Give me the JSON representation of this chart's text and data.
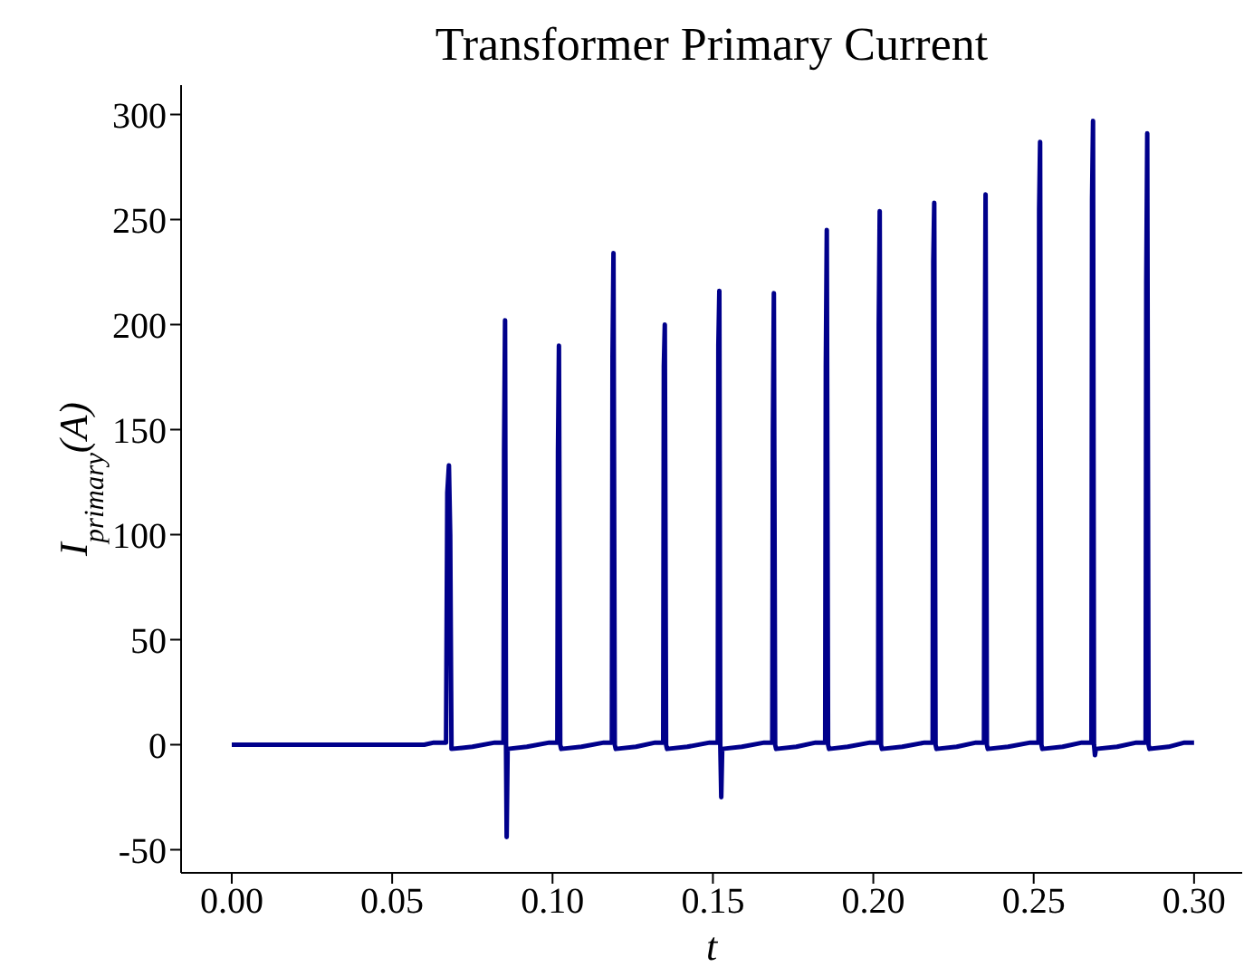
{
  "chart_data": {
    "type": "line",
    "title": "Transformer Primary Current",
    "xlabel": "t",
    "ylabel": "I$_{primary}$(A)",
    "series": [
      {
        "color": "#00008b",
        "x": [
          0,
          0.06,
          0.063,
          0.0668,
          0.0672,
          0.0677,
          0.0681,
          0.0685,
          0.075,
          0.082,
          0.0847,
          0.0849,
          0.0852,
          0.0855,
          0.0857,
          0.086,
          0.092,
          0.099,
          0.1015,
          0.1017,
          0.102,
          0.1024,
          0.1027,
          0.109,
          0.116,
          0.1185,
          0.1187,
          0.119,
          0.1194,
          0.1197,
          0.126,
          0.132,
          0.1345,
          0.1347,
          0.135,
          0.1354,
          0.1357,
          0.142,
          0.149,
          0.1515,
          0.1517,
          0.152,
          0.1523,
          0.1526,
          0.1529,
          0.159,
          0.166,
          0.1685,
          0.1687,
          0.169,
          0.1694,
          0.1697,
          0.176,
          0.182,
          0.185,
          0.1852,
          0.1855,
          0.1859,
          0.1862,
          0.192,
          0.199,
          0.2015,
          0.2017,
          0.202,
          0.2024,
          0.2027,
          0.209,
          0.216,
          0.2185,
          0.2187,
          0.219,
          0.2194,
          0.2197,
          0.226,
          0.232,
          0.2345,
          0.2347,
          0.235,
          0.2354,
          0.2357,
          0.242,
          0.249,
          0.2515,
          0.2517,
          0.252,
          0.2524,
          0.2527,
          0.259,
          0.265,
          0.268,
          0.2682,
          0.2685,
          0.2688,
          0.2691,
          0.2694,
          0.276,
          0.282,
          0.2849,
          0.2851,
          0.2854,
          0.2858,
          0.2861,
          0.292,
          0.297,
          0.3
        ],
        "values": [
          0,
          0,
          1,
          1,
          120,
          133,
          100,
          -2,
          -1,
          1,
          1,
          140,
          202,
          0,
          -44,
          -2,
          -1,
          1,
          1,
          140,
          190,
          0,
          -2,
          -1,
          1,
          1,
          185,
          234,
          0,
          -2,
          -1,
          1,
          1,
          180,
          200,
          0,
          -2,
          -1,
          1,
          1,
          190,
          216,
          0,
          -25,
          -2,
          -1,
          1,
          1,
          150,
          215,
          0,
          -2,
          -1,
          1,
          1,
          180,
          245,
          0,
          -2,
          -1,
          1,
          1,
          200,
          254,
          0,
          -2,
          -1,
          1,
          1,
          230,
          258,
          0,
          -2,
          -1,
          1,
          1,
          150,
          262,
          0,
          -2,
          -1,
          1,
          1,
          255,
          287,
          0,
          -2,
          -1,
          1,
          1,
          260,
          297,
          0,
          -5,
          -2,
          -1,
          1,
          1,
          220,
          291,
          0,
          -2,
          -1,
          1,
          1
        ]
      }
    ],
    "xlim": [
      -0.0158,
      0.315
    ],
    "ylim": [
      -61,
      314
    ],
    "xticks": [
      {
        "value": 0,
        "label": "0.00"
      },
      {
        "value": 0.05,
        "label": "0.05"
      },
      {
        "value": 0.1,
        "label": "0.10"
      },
      {
        "value": 0.15,
        "label": "0.15"
      },
      {
        "value": 0.2,
        "label": "0.20"
      },
      {
        "value": 0.25,
        "label": "0.25"
      },
      {
        "value": 0.3,
        "label": "0.30"
      }
    ],
    "yticks": [
      -50,
      0,
      50,
      100,
      150,
      200,
      250,
      300
    ],
    "grid": false,
    "legend": false,
    "marker": "none",
    "line_style": "solid"
  }
}
